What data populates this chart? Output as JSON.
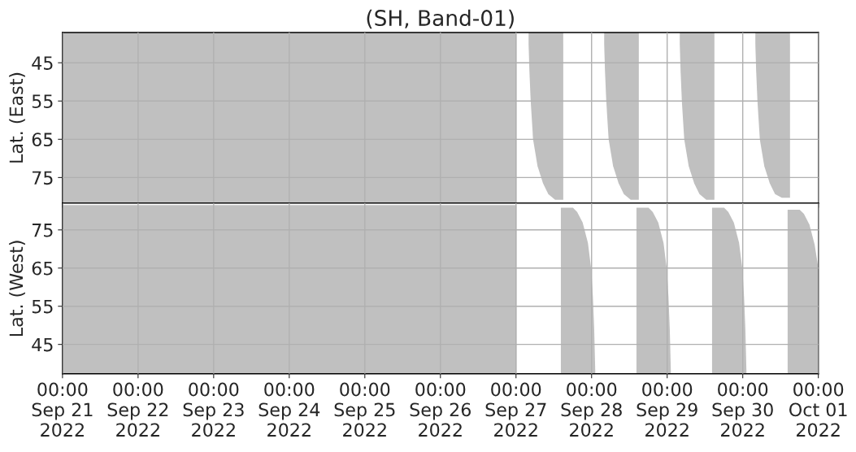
{
  "chart_data": [
    {
      "type": "area",
      "title": "(SH, Band-01)",
      "ylabel": "Lat. (East)",
      "xlim": [
        "2022-09-21",
        "2022-10-01"
      ],
      "ylim": [
        81.7,
        37.1
      ],
      "yticks": [
        45,
        55,
        65,
        75
      ],
      "grid": true,
      "tick_labels": "y",
      "xticks": [
        {
          "value": "2022-09-21",
          "label": null
        },
        {
          "value": "2022-09-22",
          "label": null
        },
        {
          "value": "2022-09-23",
          "label": null
        },
        {
          "value": "2022-09-24",
          "label": null
        },
        {
          "value": "2022-09-25",
          "label": null
        },
        {
          "value": "2022-09-26",
          "label": null
        },
        {
          "value": "2022-09-27",
          "label": null
        },
        {
          "value": "2022-09-28",
          "label": null
        },
        {
          "value": "2022-09-29",
          "label": null
        },
        {
          "value": "2022-09-30",
          "label": null
        },
        {
          "value": "2022-10-01",
          "label": null
        }
      ],
      "series": [
        {
          "color": "#c0c0c0",
          "x": [
            "2022-09-21T00:00",
            "2022-09-27T00:10"
          ],
          "values": [
            81.5,
            81.5
          ]
        },
        {
          "color": "#c0c0c0",
          "x": [
            "2022-09-27T04:00",
            "2022-09-27T04:15",
            "2022-09-27T04:40",
            "2022-09-27T05:25",
            "2022-09-27T06:50",
            "2022-09-27T08:35",
            "2022-09-27T10:15",
            "2022-09-27T12:25",
            "2022-09-27T15:00"
          ],
          "values": [
            40,
            47,
            55,
            65,
            72,
            76.5,
            79.3,
            80.8,
            80.8
          ]
        },
        {
          "color": "#c0c0c0",
          "x": [
            "2022-09-28T04:00",
            "2022-09-28T04:15",
            "2022-09-28T04:40",
            "2022-09-28T05:25",
            "2022-09-28T06:50",
            "2022-09-28T08:35",
            "2022-09-28T10:15",
            "2022-09-28T12:25",
            "2022-09-28T15:00"
          ],
          "values": [
            40,
            47,
            55,
            65,
            72,
            76.5,
            79.3,
            80.8,
            80.8
          ]
        },
        {
          "color": "#c0c0c0",
          "x": [
            "2022-09-29T04:00",
            "2022-09-29T04:15",
            "2022-09-29T04:40",
            "2022-09-29T05:25",
            "2022-09-29T06:50",
            "2022-09-29T08:35",
            "2022-09-29T10:15",
            "2022-09-29T12:25",
            "2022-09-29T15:00"
          ],
          "values": [
            40,
            47,
            55,
            65,
            72,
            76.5,
            79.3,
            80.8,
            80.8
          ]
        },
        {
          "color": "#c0c0c0",
          "x": [
            "2022-09-30T04:00",
            "2022-09-30T04:15",
            "2022-09-30T04:40",
            "2022-09-30T05:25",
            "2022-09-30T06:50",
            "2022-09-30T08:35",
            "2022-09-30T10:15",
            "2022-09-30T12:25",
            "2022-09-30T15:00"
          ],
          "values": [
            40,
            47,
            55,
            65,
            72,
            76.5,
            79.3,
            80.3,
            80.3
          ]
        }
      ]
    },
    {
      "type": "area",
      "ylabel": "Lat. (West)",
      "xlim": [
        "2022-09-21",
        "2022-10-01"
      ],
      "ylim": [
        37.3,
        82.0
      ],
      "yticks": [
        45,
        55,
        65,
        75
      ],
      "grid": true,
      "xticks": [
        {
          "value": "2022-09-21",
          "label": "00:00\nSep 21\n2022"
        },
        {
          "value": "2022-09-22",
          "label": "00:00\nSep 22\n2022"
        },
        {
          "value": "2022-09-23",
          "label": "00:00\nSep 23\n2022"
        },
        {
          "value": "2022-09-24",
          "label": "00:00\nSep 24\n2022"
        },
        {
          "value": "2022-09-25",
          "label": "00:00\nSep 25\n2022"
        },
        {
          "value": "2022-09-26",
          "label": "00:00\nSep 26\n2022"
        },
        {
          "value": "2022-09-27",
          "label": "00:00\nSep 27\n2022"
        },
        {
          "value": "2022-09-28",
          "label": "00:00\nSep 28\n2022"
        },
        {
          "value": "2022-09-29",
          "label": "00:00\nSep 29\n2022"
        },
        {
          "value": "2022-09-30",
          "label": "00:00\nSep 30\n2022"
        },
        {
          "value": "2022-10-01",
          "label": "00:00\nOct 01\n2022"
        }
      ],
      "series": [
        {
          "color": "#c0c0c0",
          "x": [
            "2022-09-21T00:00",
            "2022-09-27T00:10"
          ],
          "values": [
            81.5,
            81.5
          ]
        },
        {
          "color": "#c0c0c0",
          "x": [
            "2022-09-27T14:15",
            "2022-09-27T18:05",
            "2022-09-27T19:25",
            "2022-09-27T21:10",
            "2022-09-27T22:50",
            "2022-09-27T23:55",
            "2022-09-28T00:25",
            "2022-09-28T00:50",
            "2022-09-28T01:10"
          ],
          "values": [
            80.8,
            80.8,
            79.7,
            76.9,
            71.6,
            64.5,
            57.4,
            48.9,
            38
          ]
        },
        {
          "color": "#c0c0c0",
          "x": [
            "2022-09-28T14:15",
            "2022-09-28T18:05",
            "2022-09-28T19:25",
            "2022-09-28T21:10",
            "2022-09-28T22:50",
            "2022-09-28T23:55",
            "2022-09-29T00:25",
            "2022-09-29T00:50",
            "2022-09-29T01:10"
          ],
          "values": [
            80.8,
            80.8,
            79.7,
            76.9,
            71.6,
            64.5,
            57.4,
            48.9,
            38
          ]
        },
        {
          "color": "#c0c0c0",
          "x": [
            "2022-09-29T14:15",
            "2022-09-29T18:05",
            "2022-09-29T19:25",
            "2022-09-29T21:10",
            "2022-09-29T22:50",
            "2022-09-29T23:55",
            "2022-09-30T00:25",
            "2022-09-30T00:50",
            "2022-09-30T01:10"
          ],
          "values": [
            80.8,
            80.8,
            79.7,
            76.9,
            71.6,
            64.5,
            57.4,
            48.9,
            38
          ]
        },
        {
          "color": "#c0c0c0",
          "x": [
            "2022-09-30T14:15",
            "2022-09-30T18:05",
            "2022-09-30T19:25",
            "2022-09-30T21:10",
            "2022-09-30T22:50",
            "2022-10-01T00:00"
          ],
          "values": [
            80.3,
            80.3,
            79.2,
            76.4,
            71.1,
            65
          ]
        }
      ]
    }
  ]
}
